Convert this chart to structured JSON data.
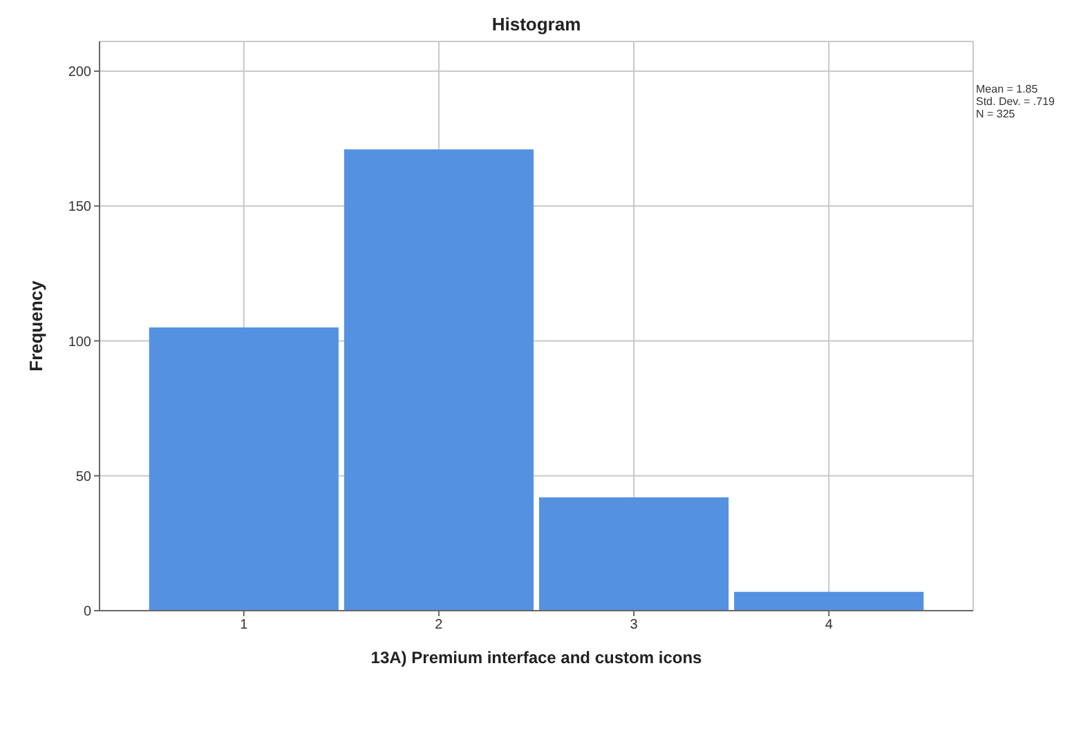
{
  "chart_data": {
    "type": "histogram",
    "title": "Histogram",
    "xlabel": "13A) Premium interface and custom icons",
    "ylabel": "Frequency",
    "bins": [
      0.5,
      1.5,
      2.5,
      3.5,
      4.5
    ],
    "values": [
      105,
      171,
      42,
      7
    ],
    "color": "#5591e1",
    "xlim": [
      0.26,
      4.74
    ],
    "xticks": [
      1,
      2,
      3,
      4
    ],
    "ylim": [
      0,
      211
    ],
    "yticks": [
      0,
      50,
      100,
      150,
      200
    ],
    "grid": true,
    "annotations": [
      "Mean = 1.85",
      "Std. Dev. = .719",
      "N = 325"
    ]
  }
}
